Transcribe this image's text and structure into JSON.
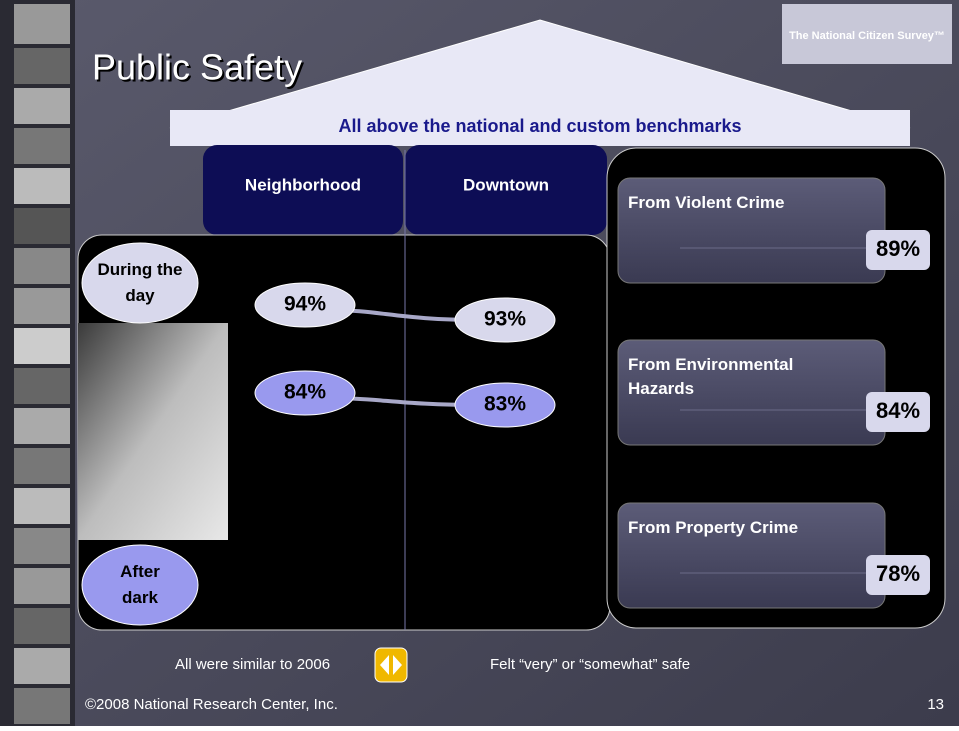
{
  "title": "Public Safety",
  "logo": "The National Citizen Survey™",
  "banner": "All above the national and custom benchmarks",
  "columns": [
    "Neighborhood",
    "Downtown"
  ],
  "rows": [
    {
      "label": "During the day",
      "values": [
        "94%",
        "93%"
      ]
    },
    {
      "label": "After dark",
      "values": [
        "84%",
        "83%"
      ]
    }
  ],
  "cards": [
    {
      "label": "From Violent Crime",
      "value": "89%"
    },
    {
      "label": "From Environmental Hazards",
      "value": "84%"
    },
    {
      "label": "From Property Crime",
      "value": "78%"
    }
  ],
  "notes": [
    "All were similar to 2006",
    "Felt “very” or “somewhat” safe"
  ],
  "footer": {
    "copyright": "©2008 National Research Center, Inc.",
    "page": "13"
  }
}
